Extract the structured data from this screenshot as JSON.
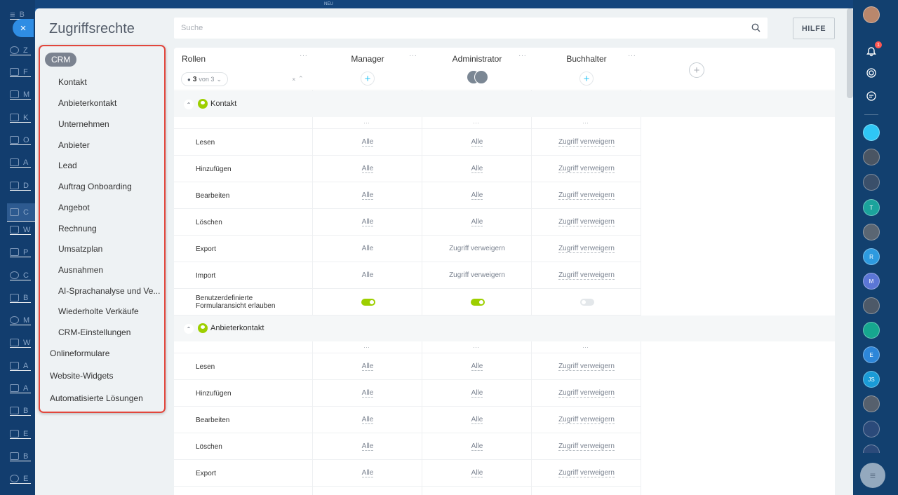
{
  "app": {
    "title": "Zugriffsrechte",
    "search_placeholder": "Suche",
    "help_label": "HILFE",
    "close_glyph": "×",
    "top_badge": "NEU"
  },
  "menu": {
    "section": "CRM",
    "items": [
      "Kontakt",
      "Anbieterkontakt",
      "Unternehmen",
      "Anbieter",
      "Lead",
      "Auftrag Onboarding",
      "Angebot",
      "Rechnung",
      "Umsatzplan",
      "Ausnahmen",
      "AI-Sprachanalyse und Ve...",
      "Wiederholte Verkäufe",
      "CRM-Einstellungen"
    ],
    "top_items": [
      "Onlineformulare",
      "Website-Widgets",
      "Automatisierte Lösungen"
    ]
  },
  "table": {
    "roles_label": "Rollen",
    "count": "3",
    "count_suffix": "von 3",
    "roles": [
      "Manager",
      "Administrator",
      "Buchhalter"
    ],
    "sections": [
      {
        "title": "Kontakt",
        "rows": [
          {
            "label": "Lesen",
            "values": [
              "Alle",
              "Alle",
              "Zugriff verweigern"
            ]
          },
          {
            "label": "Hinzufügen",
            "values": [
              "Alle",
              "Alle",
              "Zugriff verweigern"
            ]
          },
          {
            "label": "Bearbeiten",
            "values": [
              "Alle",
              "Alle",
              "Zugriff verweigern"
            ]
          },
          {
            "label": "Löschen",
            "values": [
              "Alle",
              "Alle",
              "Zugriff verweigern"
            ]
          },
          {
            "label": "Export",
            "values": [
              "Alle",
              "Zugriff verweigern",
              "Zugriff verweigern"
            ]
          },
          {
            "label": "Import",
            "values": [
              "Alle",
              "Zugriff verweigern",
              "Zugriff verweigern"
            ]
          }
        ],
        "toggle_row": {
          "label_line1": "Benutzerdefinierte",
          "label_line2": "Formularansicht erlauben",
          "states": [
            "on",
            "on",
            "off"
          ]
        }
      },
      {
        "title": "Anbieterkontakt",
        "rows": [
          {
            "label": "Lesen",
            "values": [
              "Alle",
              "Alle",
              "Zugriff verweigern"
            ]
          },
          {
            "label": "Hinzufügen",
            "values": [
              "Alle",
              "Alle",
              "Zugriff verweigern"
            ]
          },
          {
            "label": "Bearbeiten",
            "values": [
              "Alle",
              "Alle",
              "Zugriff verweigern"
            ]
          },
          {
            "label": "Löschen",
            "values": [
              "Alle",
              "Alle",
              "Zugriff verweigern"
            ]
          },
          {
            "label": "Export",
            "values": [
              "Alle",
              "Alle",
              "Zugriff verweigern"
            ]
          }
        ]
      }
    ]
  },
  "right_rail": {
    "bell_count": "1",
    "avatars": [
      {
        "initials": "",
        "color": "#2fc6f6",
        "icon": "chat-icon"
      },
      {
        "initials": "",
        "color": "#4a5563",
        "icon": "avatar"
      },
      {
        "initials": "",
        "color": "#3a4f6a",
        "icon": "avatar"
      },
      {
        "initials": "T",
        "color": "#1ba39c",
        "icon": "hex-avatar"
      },
      {
        "initials": "",
        "color": "#5a6673",
        "icon": "avatar"
      },
      {
        "initials": "R",
        "color": "#2d9ae0",
        "icon": "initials-avatar"
      },
      {
        "initials": "M",
        "color": "#5b76d6",
        "icon": "initials-avatar"
      },
      {
        "initials": "",
        "color": "#4d5968",
        "icon": "avatar"
      },
      {
        "initials": "",
        "color": "#16a78f",
        "icon": "app-avatar"
      },
      {
        "initials": "E",
        "color": "#2d86d9",
        "icon": "initials-avatar"
      },
      {
        "initials": "JS",
        "color": "#1a9bd7",
        "icon": "initials-avatar"
      },
      {
        "initials": "",
        "color": "#56606d",
        "icon": "avatar"
      },
      {
        "initials": "",
        "color": "#2b4a7a",
        "icon": "avatar"
      }
    ]
  },
  "colors": {
    "accent": "#2fc6f6",
    "toggle_on": "#9dcf00",
    "highlight_border": "#e2463c"
  }
}
